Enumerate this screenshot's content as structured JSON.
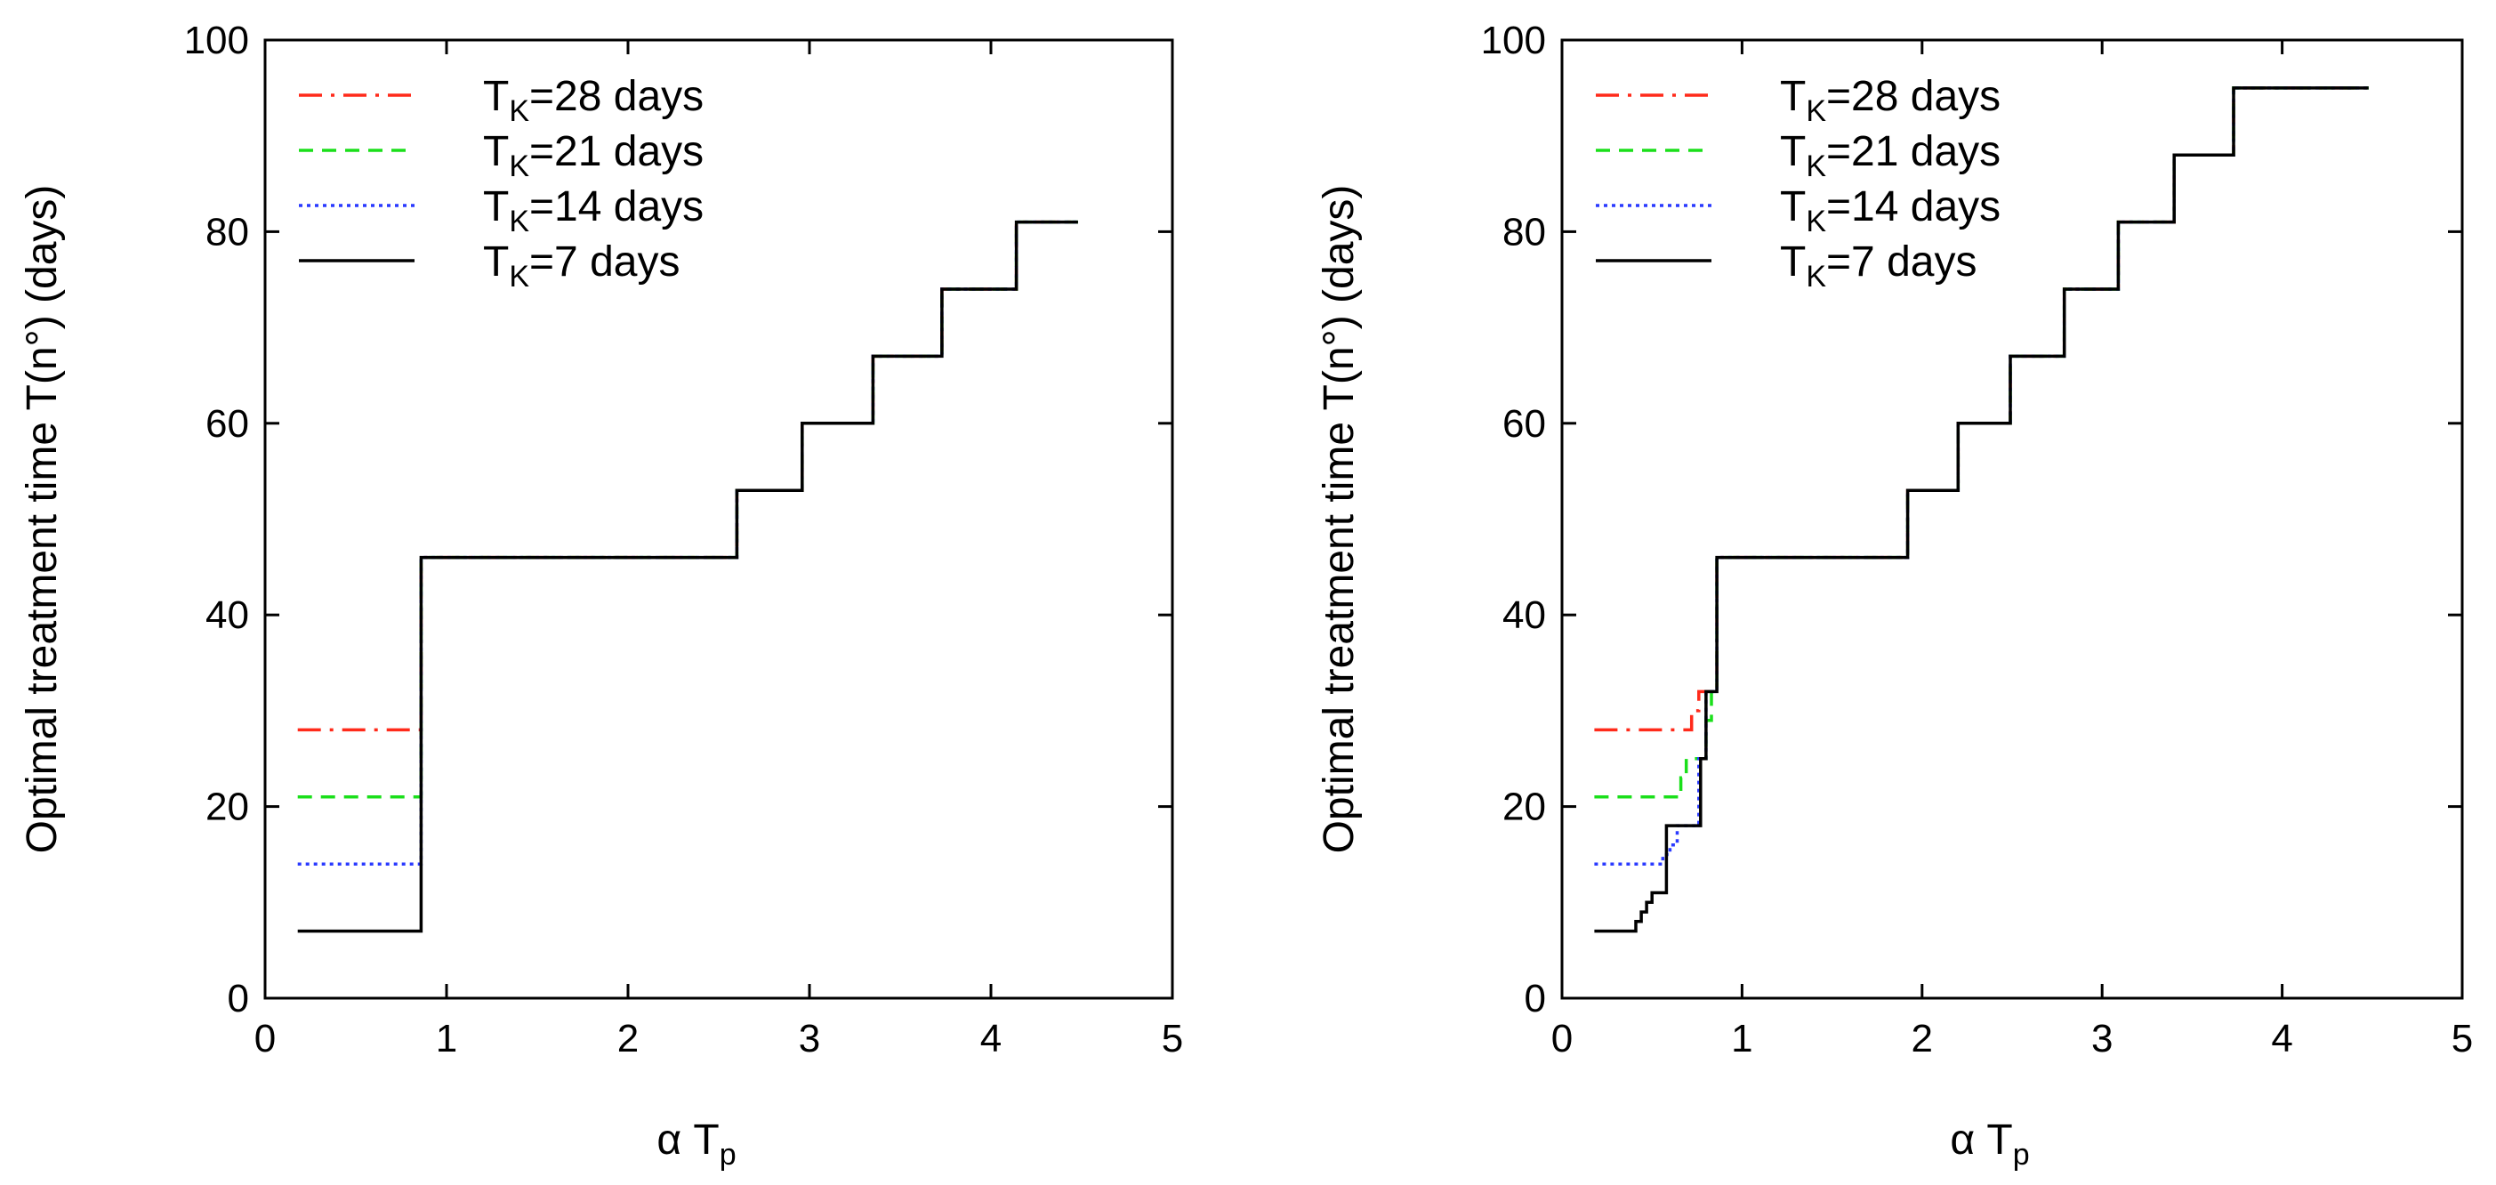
{
  "chart_data": [
    {
      "type": "line",
      "xlabel": "α T",
      "xlabel_sub": "p",
      "ylabel": "Optimal treatment time T(n°) (days)",
      "xlim": [
        0,
        5
      ],
      "ylim": [
        0,
        100
      ],
      "xticks": [
        "0",
        "1",
        "2",
        "3",
        "4",
        "5"
      ],
      "yticks": [
        "0",
        "20",
        "40",
        "60",
        "80",
        "100"
      ],
      "legend_position": "top-left",
      "series": [
        {
          "name": "TK=28 days",
          "label_prefix": "T",
          "label_sub": "K",
          "label_suffix": "=28 days",
          "color": "#ff2a1a",
          "dash": "26 10 4 10",
          "x": [
            0.18,
            0.86,
            0.86,
            2.6,
            2.6,
            2.96,
            2.96,
            3.35,
            3.35,
            3.73,
            3.73,
            4.14,
            4.14,
            4.48
          ],
          "y": [
            28,
            28,
            46,
            46,
            53,
            53,
            60,
            60,
            67,
            67,
            74,
            74,
            81,
            81
          ]
        },
        {
          "name": "TK=21 days",
          "label_prefix": "T",
          "label_sub": "K",
          "label_suffix": "=21 days",
          "color": "#1adf1a",
          "dash": "16 10",
          "x": [
            0.18,
            0.86,
            0.86,
            2.6,
            2.6,
            2.96,
            2.96,
            3.35,
            3.35,
            3.73,
            3.73,
            4.14,
            4.14,
            4.48
          ],
          "y": [
            21,
            21,
            46,
            46,
            53,
            53,
            60,
            60,
            67,
            67,
            74,
            74,
            81,
            81
          ]
        },
        {
          "name": "TK=14 days",
          "label_prefix": "T",
          "label_sub": "K",
          "label_suffix": "=14 days",
          "color": "#2a3aff",
          "dash": "4 5",
          "x": [
            0.18,
            0.86,
            0.86,
            2.6,
            2.6,
            2.96,
            2.96,
            3.35,
            3.35,
            3.73,
            3.73,
            4.14,
            4.14,
            4.48
          ],
          "y": [
            14,
            14,
            46,
            46,
            53,
            53,
            60,
            60,
            67,
            67,
            74,
            74,
            81,
            81
          ]
        },
        {
          "name": "TK=7 days",
          "label_prefix": "T",
          "label_sub": "K",
          "label_suffix": "=7 days",
          "color": "#000000",
          "dash": "",
          "x": [
            0.18,
            0.86,
            0.86,
            2.6,
            2.6,
            2.96,
            2.96,
            3.35,
            3.35,
            3.73,
            3.73,
            4.14,
            4.14,
            4.48
          ],
          "y": [
            7,
            7,
            46,
            46,
            53,
            53,
            60,
            60,
            67,
            67,
            74,
            74,
            81,
            81
          ]
        }
      ]
    },
    {
      "type": "line",
      "xlabel": "α T",
      "xlabel_sub": "p",
      "ylabel": "Optimal treatment time T(n°) (days)",
      "xlim": [
        0,
        5
      ],
      "ylim": [
        0,
        100
      ],
      "xticks": [
        "0",
        "1",
        "2",
        "3",
        "4",
        "5"
      ],
      "yticks": [
        "0",
        "20",
        "40",
        "60",
        "80",
        "100"
      ],
      "legend_position": "top-left",
      "series": [
        {
          "name": "TK=28 days",
          "label_prefix": "T",
          "label_sub": "K",
          "label_suffix": "=28 days",
          "color": "#ff2a1a",
          "dash": "26 10 4 10",
          "x": [
            0.18,
            0.72,
            0.72,
            0.76,
            0.76,
            0.79,
            0.79,
            0.86,
            0.86,
            1.92,
            1.92,
            2.2,
            2.2,
            2.49,
            2.49,
            2.79,
            2.79,
            3.09,
            3.09,
            3.4,
            3.4,
            3.73,
            3.73,
            4.48
          ],
          "y": [
            28,
            28,
            30,
            30,
            32,
            32,
            32,
            32,
            46,
            46,
            53,
            53,
            60,
            60,
            67,
            67,
            74,
            74,
            81,
            81,
            88,
            88,
            95,
            95
          ]
        },
        {
          "name": "TK=21 days",
          "label_prefix": "T",
          "label_sub": "K",
          "label_suffix": "=21 days",
          "color": "#1adf1a",
          "dash": "16 10",
          "x": [
            0.18,
            0.66,
            0.66,
            0.69,
            0.69,
            0.72,
            0.72,
            0.8,
            0.8,
            0.83,
            0.83,
            0.86,
            0.86,
            1.92,
            1.92,
            2.2,
            2.2,
            2.49,
            2.49,
            2.79,
            2.79,
            3.09,
            3.09,
            3.4,
            3.4,
            3.73,
            3.73,
            4.48
          ],
          "y": [
            21,
            21,
            23,
            23,
            25,
            25,
            25,
            25,
            29,
            29,
            32,
            32,
            46,
            46,
            53,
            53,
            60,
            60,
            67,
            67,
            74,
            74,
            81,
            81,
            88,
            88,
            95,
            95
          ]
        },
        {
          "name": "TK=14 days",
          "label_prefix": "T",
          "label_sub": "K",
          "label_suffix": "=14 days",
          "color": "#2a3aff",
          "dash": "4 5",
          "x": [
            0.18,
            0.56,
            0.56,
            0.6,
            0.6,
            0.64,
            0.64,
            0.67,
            0.67,
            0.72,
            0.72,
            0.76,
            0.76,
            0.8,
            0.8,
            0.83,
            0.83,
            0.86,
            0.86,
            1.92,
            1.92,
            2.2,
            2.2,
            2.49,
            2.49,
            2.79,
            2.79,
            3.09,
            3.09,
            3.4,
            3.4,
            3.73,
            3.73,
            4.48
          ],
          "y": [
            14,
            14,
            15,
            15,
            16,
            16,
            18,
            18,
            18,
            18,
            18,
            18,
            25,
            25,
            32,
            32,
            32,
            32,
            46,
            46,
            53,
            53,
            60,
            60,
            67,
            67,
            74,
            74,
            81,
            81,
            88,
            88,
            95,
            95
          ]
        },
        {
          "name": "TK=7 days",
          "label_prefix": "T",
          "label_sub": "K",
          "label_suffix": "=7 days",
          "color": "#000000",
          "dash": "",
          "x": [
            0.18,
            0.41,
            0.41,
            0.44,
            0.44,
            0.47,
            0.47,
            0.5,
            0.5,
            0.54,
            0.54,
            0.58,
            0.58,
            0.72,
            0.72,
            0.77,
            0.77,
            0.8,
            0.8,
            0.83,
            0.83,
            0.86,
            0.86,
            1.92,
            1.92,
            2.2,
            2.2,
            2.49,
            2.49,
            2.79,
            2.79,
            3.09,
            3.09,
            3.4,
            3.4,
            3.73,
            3.73,
            4.48
          ],
          "y": [
            7,
            7,
            8,
            8,
            9,
            9,
            10,
            10,
            11,
            11,
            11,
            11,
            18,
            18,
            18,
            18,
            25,
            25,
            32,
            32,
            32,
            32,
            46,
            46,
            53,
            53,
            60,
            60,
            67,
            67,
            74,
            74,
            81,
            81,
            88,
            88,
            95,
            95
          ]
        }
      ]
    }
  ]
}
